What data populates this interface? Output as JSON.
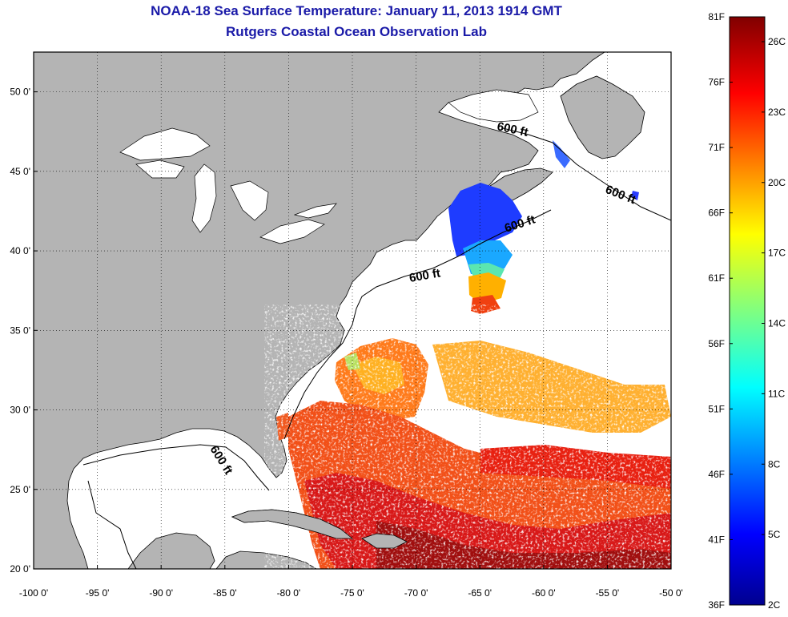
{
  "title": "NOAA-18 Sea Surface Temperature:  January 11, 2013 1914 GMT",
  "subtitle": "Rutgers Coastal Ocean Observation Lab",
  "map": {
    "lon_range": [
      -100,
      -50
    ],
    "lat_range": [
      20,
      52.5
    ],
    "lon_ticks": [
      "-100 0'",
      "-95 0'",
      "-90 0'",
      "-85 0'",
      "-80 0'",
      "-75 0'",
      "-70 0'",
      "-65 0'",
      "-60 0'",
      "-55 0'",
      "-50 0'"
    ],
    "lat_ticks": [
      "20 0'",
      "25 0'",
      "30 0'",
      "35 0'",
      "40 0'",
      "45 0'",
      "50 0'"
    ],
    "grid": "dotted",
    "land_color": "#b4b4b4",
    "ocean_color": "#ffffff",
    "contour_labels": [
      "600 ft",
      "600 ft",
      "600 ft",
      "600 ft",
      "600 ft"
    ]
  },
  "colorbar": {
    "fahrenheit": [
      "81F",
      "76F",
      "71F",
      "66F",
      "61F",
      "56F",
      "51F",
      "46F",
      "41F",
      "36F"
    ],
    "celsius": [
      "26C",
      "23C",
      "20C",
      "17C",
      "14C",
      "11C",
      "8C",
      "5C",
      "2C"
    ],
    "colormap": "jet"
  }
}
